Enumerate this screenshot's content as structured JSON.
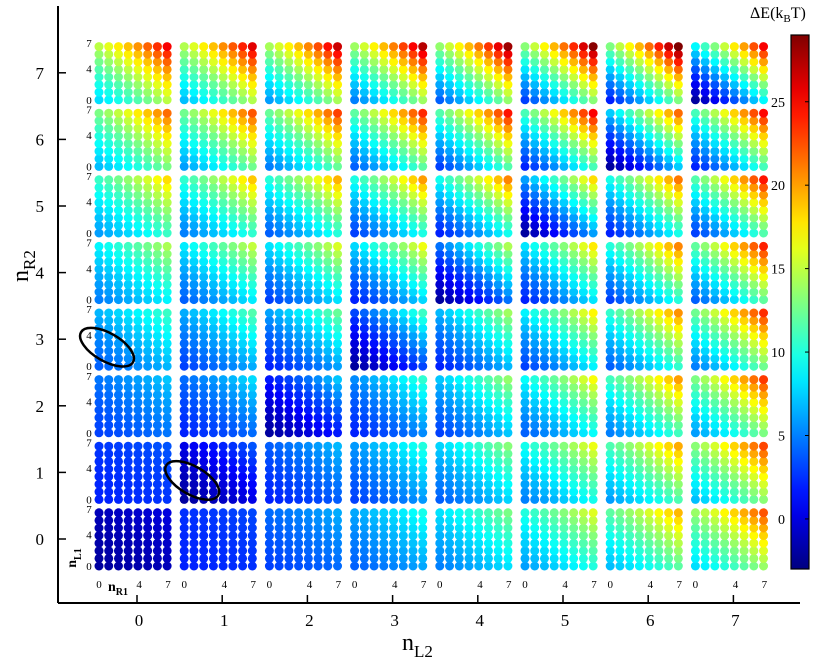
{
  "chart_data": {
    "type": "heatmap",
    "layout": "8x8 grid of dot-matrix panels",
    "x_categories": [
      "0",
      "1",
      "2",
      "3",
      "4",
      "5",
      "6",
      "7"
    ],
    "y_categories": [
      "0",
      "1",
      "2",
      "3",
      "4",
      "5",
      "6",
      "7"
    ],
    "inner_axis_ticks": [
      "0",
      "4",
      "7"
    ],
    "inner_grid_size": 8,
    "xlabel": "n",
    "xlabel_sub": "L2",
    "ylabel": "n",
    "ylabel_sub": "R2",
    "inner_xlabel": "n",
    "inner_xlabel_sub": "R1",
    "inner_ylabel": "n",
    "inner_ylabel_sub": "L1",
    "colorbar": {
      "title": "ΔE(k",
      "title_sub": "B",
      "title_end": "T)",
      "min": -3,
      "max": 29,
      "ticks": [
        "0",
        "5",
        "10",
        "15",
        "20",
        "25"
      ],
      "tick_values": [
        0,
        5,
        10,
        15,
        20,
        25
      ],
      "colormap": "jet"
    },
    "energy_model": "values within each panel vary along anti-diagonals; panels near diagonal nL2 ≈ nR2 are low (blue), far corners high (red)",
    "highlighted_panels": [
      {
        "nL2": 0,
        "nR2": 3
      },
      {
        "nL2": 1,
        "nR2": 1
      }
    ]
  }
}
